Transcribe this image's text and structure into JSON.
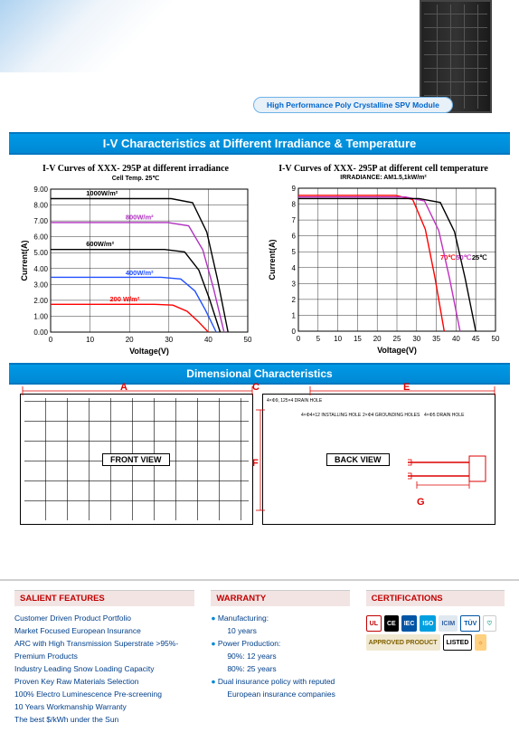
{
  "top": {
    "tag_text": "High Performance Poly Crystalline SPV Module"
  },
  "sections": {
    "iv_title": "I-V Characteristics at Different Irradiance & Temperature",
    "dim_title": "Dimensional Characteristics"
  },
  "chart_left": {
    "title": "I-V Curves of XXX- 295P at different irradiance",
    "subtitle": "Cell Temp. 25℃",
    "xlabel": "Voltage(V)",
    "ylabel": "Current(A)",
    "xlim": [
      0,
      50
    ],
    "xtick_step": 10,
    "ylim": [
      0,
      9
    ],
    "ytick_step": 1,
    "y_decimals": 2,
    "grid_color": "#000000",
    "background": "#ffffff",
    "series": [
      {
        "label": "1000W/m²",
        "color": "#000000",
        "plateau": 8.4,
        "knee_x": 36,
        "tail_x": 45,
        "label_x": 9,
        "label_y": 8.6
      },
      {
        "label": "800W/m²",
        "color": "#b030c0",
        "plateau": 6.9,
        "knee_x": 35,
        "tail_x": 44,
        "label_x": 19,
        "label_y": 7.1
      },
      {
        "label": "600W/m²",
        "color": "#000000",
        "plateau": 5.2,
        "knee_x": 34,
        "tail_x": 43,
        "label_x": 9,
        "label_y": 5.4
      },
      {
        "label": "400W/m²",
        "color": "#2050ff",
        "plateau": 3.45,
        "knee_x": 33,
        "tail_x": 42,
        "label_x": 19,
        "label_y": 3.6
      },
      {
        "label": "200 W/m²",
        "color": "#ff0000",
        "plateau": 1.75,
        "knee_x": 31,
        "tail_x": 40,
        "label_x": 15,
        "label_y": 1.95
      }
    ]
  },
  "chart_right": {
    "title": "I-V Curves of XXX- 295P at different cell temperature",
    "subtitle": "IRRADIANCE: AM1.5,1kW/m²",
    "xlabel": "Voltage(V)",
    "ylabel": "Current(A)",
    "xlim": [
      0,
      50
    ],
    "xtick_step": 5,
    "ylim": [
      0,
      9
    ],
    "ytick_step": 1,
    "y_decimals": 0,
    "grid_color": "#000000",
    "background": "#ffffff",
    "series": [
      {
        "label": "70℃",
        "color": "#ff0000",
        "plateau": 8.55,
        "knee_x": 29,
        "tail_x": 37,
        "label_x": 36,
        "label_y": 4.5
      },
      {
        "label": "50℃",
        "color": "#c030c0",
        "plateau": 8.45,
        "knee_x": 32,
        "tail_x": 41,
        "label_x": 40,
        "label_y": 4.5
      },
      {
        "label": "25℃",
        "color": "#000000",
        "plateau": 8.35,
        "knee_x": 36,
        "tail_x": 45,
        "label_x": 44,
        "label_y": 4.5
      }
    ]
  },
  "dimensions": {
    "front_label": "FRONT VIEW",
    "back_label": "BACK VIEW",
    "letters": {
      "A": "A",
      "C": "C",
      "E": "E",
      "F": "F",
      "G": "G"
    },
    "back_notes": [
      "4×Φ9, 125×4 DRAIN HOLE",
      "4×Φ4×12 INSTALLING HOLE",
      "2×Φ4 GROUNDING HOLES",
      "4×Φ5 DRAIN HOLE"
    ]
  },
  "features": {
    "header": "SALIENT FEATURES",
    "items": [
      "Customer Driven Product Portfolio",
      "Market Focused European Insurance",
      "ARC with High Transmission Superstrate >95%-Premium Products",
      "Industry Leading Snow Loading Capacity",
      "Proven Key Raw Materials Selection",
      "100% Electro Luminescence Pre-screening",
      "10 Years Workmanship Warranty",
      "The best $/kWh under the Sun"
    ]
  },
  "warranty": {
    "header": "WARRANTY",
    "lines": [
      {
        "bullet": true,
        "text": "Manufacturing:"
      },
      {
        "bullet": false,
        "text": "10 years",
        "sub": true
      },
      {
        "bullet": true,
        "text": "Power Production:"
      },
      {
        "bullet": false,
        "text": "90%: 12 years",
        "sub": true
      },
      {
        "bullet": false,
        "text": "80%: 25 years",
        "sub": true
      },
      {
        "bullet": true,
        "text": "Dual insurance policy with reputed"
      },
      {
        "bullet": false,
        "text": "European insurance companies",
        "sub": true
      }
    ]
  },
  "certs": {
    "header": "CERTIFICATIONS",
    "badges": [
      {
        "text": "UL",
        "bg": "#ffffff",
        "fg": "#c00000",
        "border": "#c00000"
      },
      {
        "text": "CE",
        "bg": "#000000",
        "fg": "#ffffff"
      },
      {
        "text": "IEC",
        "bg": "#0055a5",
        "fg": "#ffffff"
      },
      {
        "text": "ISO",
        "bg": "#00a0e0",
        "fg": "#ffffff"
      },
      {
        "text": "ICIM",
        "bg": "#e0e8f0",
        "fg": "#3060a0"
      },
      {
        "text": "TÜV",
        "bg": "#ffffff",
        "fg": "#0055a5",
        "border": "#0055a5"
      },
      {
        "text": "♡",
        "bg": "#ffffff",
        "fg": "#00a080",
        "border": "#cccccc"
      },
      {
        "text": "APPROVED PRODUCT",
        "bg": "#f0e8d0",
        "fg": "#806000"
      },
      {
        "text": "LISTED",
        "bg": "#ffffff",
        "fg": "#000000",
        "border": "#000000"
      },
      {
        "text": "☼",
        "bg": "#ffd080",
        "fg": "#d06000"
      }
    ]
  }
}
